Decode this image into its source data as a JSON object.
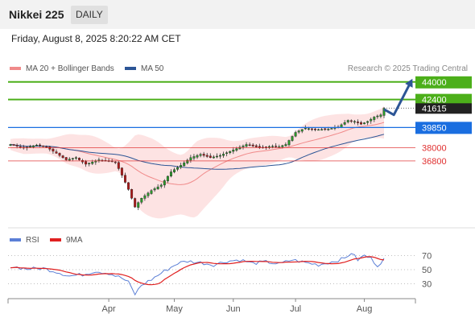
{
  "header": {
    "title": "Nikkei 225",
    "period": "DAILY"
  },
  "timestamp": "Friday, August 8, 2025 8:20:22 AM CET",
  "legend": {
    "ma20": {
      "label": "MA 20 + Bollinger Bands",
      "color": "#f08a8a"
    },
    "ma50": {
      "label": "MA 50",
      "color": "#2c5596"
    }
  },
  "credit": "Research © 2025 Trading Central",
  "rsi_legend": {
    "rsi": {
      "label": "RSI",
      "color": "#5b7fd6"
    },
    "ma9": {
      "label": "9MA",
      "color": "#e02020"
    }
  },
  "chart_data": [
    {
      "type": "candlestick",
      "y_range": [
        30700,
        44500
      ],
      "x_labels": [
        "Apr",
        "May",
        "Jun",
        "Jul",
        "Aug"
      ],
      "x_label_positions": [
        30,
        50,
        68,
        87,
        108
      ],
      "series_length": 115,
      "anchors": [
        [
          0,
          38300
        ],
        [
          4,
          38000
        ],
        [
          8,
          38250
        ],
        [
          11,
          38050
        ],
        [
          14,
          37500
        ],
        [
          17,
          36900
        ],
        [
          20,
          37100
        ],
        [
          23,
          36500
        ],
        [
          27,
          36900
        ],
        [
          32,
          36700
        ],
        [
          34,
          35500
        ],
        [
          36,
          34200
        ],
        [
          38,
          32600
        ],
        [
          40,
          33400
        ],
        [
          43,
          34100
        ],
        [
          46,
          34600
        ],
        [
          49,
          35800
        ],
        [
          52,
          36400
        ],
        [
          55,
          37100
        ],
        [
          58,
          37400
        ],
        [
          61,
          37100
        ],
        [
          64,
          37300
        ],
        [
          68,
          37800
        ],
        [
          72,
          38300
        ],
        [
          76,
          38000
        ],
        [
          80,
          38150
        ],
        [
          82,
          38100
        ],
        [
          84,
          38300
        ],
        [
          87,
          39400
        ],
        [
          90,
          39800
        ],
        [
          93,
          39650
        ],
        [
          97,
          39700
        ],
        [
          100,
          39900
        ],
        [
          103,
          40500
        ],
        [
          105,
          40400
        ],
        [
          107,
          40150
        ],
        [
          109,
          40400
        ],
        [
          111,
          40800
        ],
        [
          113,
          41000
        ],
        [
          114,
          41600
        ]
      ],
      "levels": [
        {
          "label": "44000",
          "value": 44000,
          "style": "resistance"
        },
        {
          "label": "42400",
          "value": 42400,
          "style": "resistance"
        },
        {
          "label": "41615",
          "value": 41615,
          "style": "last"
        },
        {
          "label": "39850",
          "value": 39850,
          "style": "pivot"
        },
        {
          "label": "38000",
          "value": 38000,
          "style": "support"
        },
        {
          "label": "36800",
          "value": 36800,
          "style": "support"
        }
      ],
      "forecast": [
        [
          114,
          41500
        ],
        [
          117,
          41000
        ],
        [
          122,
          43900
        ]
      ],
      "colors": {
        "up": "#2a9a2a",
        "down": "#b01818",
        "resistance": "#4caf1a",
        "pivot": "#1a6ee0",
        "support": "#e03030",
        "arrow": "#2c5596"
      }
    },
    {
      "type": "line",
      "y_range": [
        10,
        90
      ],
      "y_ticks": [
        "70",
        "50",
        "30"
      ],
      "y_tick_values": [
        70,
        50,
        30
      ],
      "anchors": [
        [
          0,
          55
        ],
        [
          5,
          51
        ],
        [
          10,
          52
        ],
        [
          14,
          47
        ],
        [
          18,
          41
        ],
        [
          22,
          43
        ],
        [
          26,
          48
        ],
        [
          30,
          45
        ],
        [
          34,
          38
        ],
        [
          36,
          32
        ],
        [
          38,
          15
        ],
        [
          40,
          28
        ],
        [
          43,
          36
        ],
        [
          47,
          48
        ],
        [
          51,
          59
        ],
        [
          54,
          62
        ],
        [
          58,
          60
        ],
        [
          62,
          57
        ],
        [
          66,
          62
        ],
        [
          70,
          64
        ],
        [
          74,
          59
        ],
        [
          78,
          61
        ],
        [
          82,
          58
        ],
        [
          86,
          64
        ],
        [
          90,
          60
        ],
        [
          94,
          57
        ],
        [
          98,
          61
        ],
        [
          102,
          66
        ],
        [
          104,
          74
        ],
        [
          106,
          64
        ],
        [
          108,
          70
        ],
        [
          110,
          66
        ],
        [
          112,
          56
        ],
        [
          114,
          65
        ]
      ]
    }
  ]
}
